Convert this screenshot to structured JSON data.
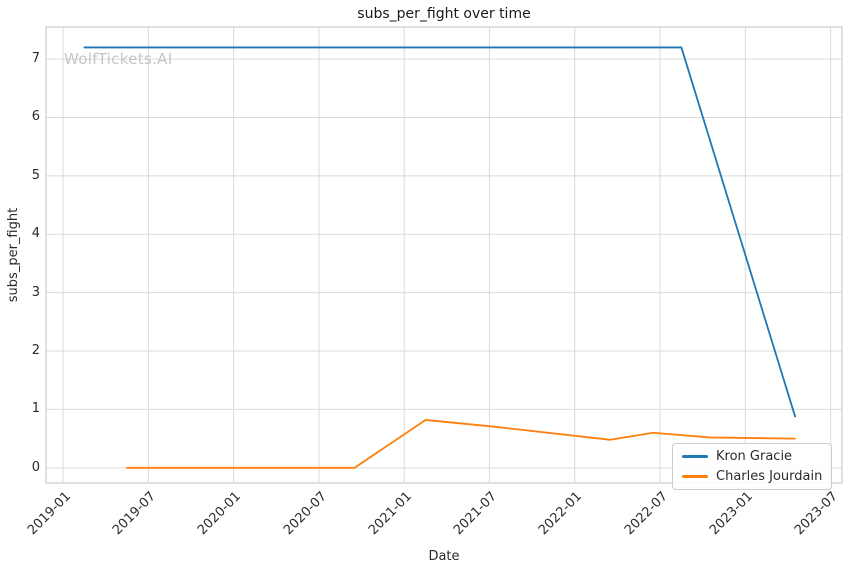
{
  "chart": {
    "watermark": "WolfTickets.AI"
  },
  "chart_data": {
    "type": "line",
    "title": "subs_per_fight over time",
    "xlabel": "Date",
    "ylabel": "subs_per_fight",
    "x_ticks": [
      "2019-01",
      "2019-07",
      "2020-01",
      "2020-07",
      "2021-01",
      "2021-07",
      "2022-01",
      "2022-07",
      "2023-01",
      "2023-07"
    ],
    "y_ticks": [
      0,
      1,
      2,
      3,
      4,
      5,
      6,
      7
    ],
    "ylim": [
      -0.26,
      7.55
    ],
    "xlim_months_from_2019_01": [
      -1.2,
      54.8
    ],
    "grid": true,
    "legend_position": "lower right",
    "series": [
      {
        "name": "Kron Gracie",
        "color": "#1f77b4",
        "points": [
          [
            "2019-02",
            7.2
          ],
          [
            "2022-08",
            7.2
          ],
          [
            "2023-04",
            0.88
          ]
        ]
      },
      {
        "name": "Charles Jourdain",
        "color": "#ff7f0e",
        "points": [
          [
            "2019-05",
            0
          ],
          [
            "2020-09",
            0
          ],
          [
            "2021-02",
            0.82
          ],
          [
            "2021-07",
            0.7
          ],
          [
            "2022-03",
            0.48
          ],
          [
            "2022-06",
            0.6
          ],
          [
            "2022-10",
            0.52
          ],
          [
            "2023-04",
            0.5
          ]
        ]
      }
    ],
    "colors": {
      "grid": "#d9d9d9",
      "spine": "#cccccc",
      "tick_text": "#2b2b2b",
      "watermark": "#c5c5c5"
    }
  }
}
